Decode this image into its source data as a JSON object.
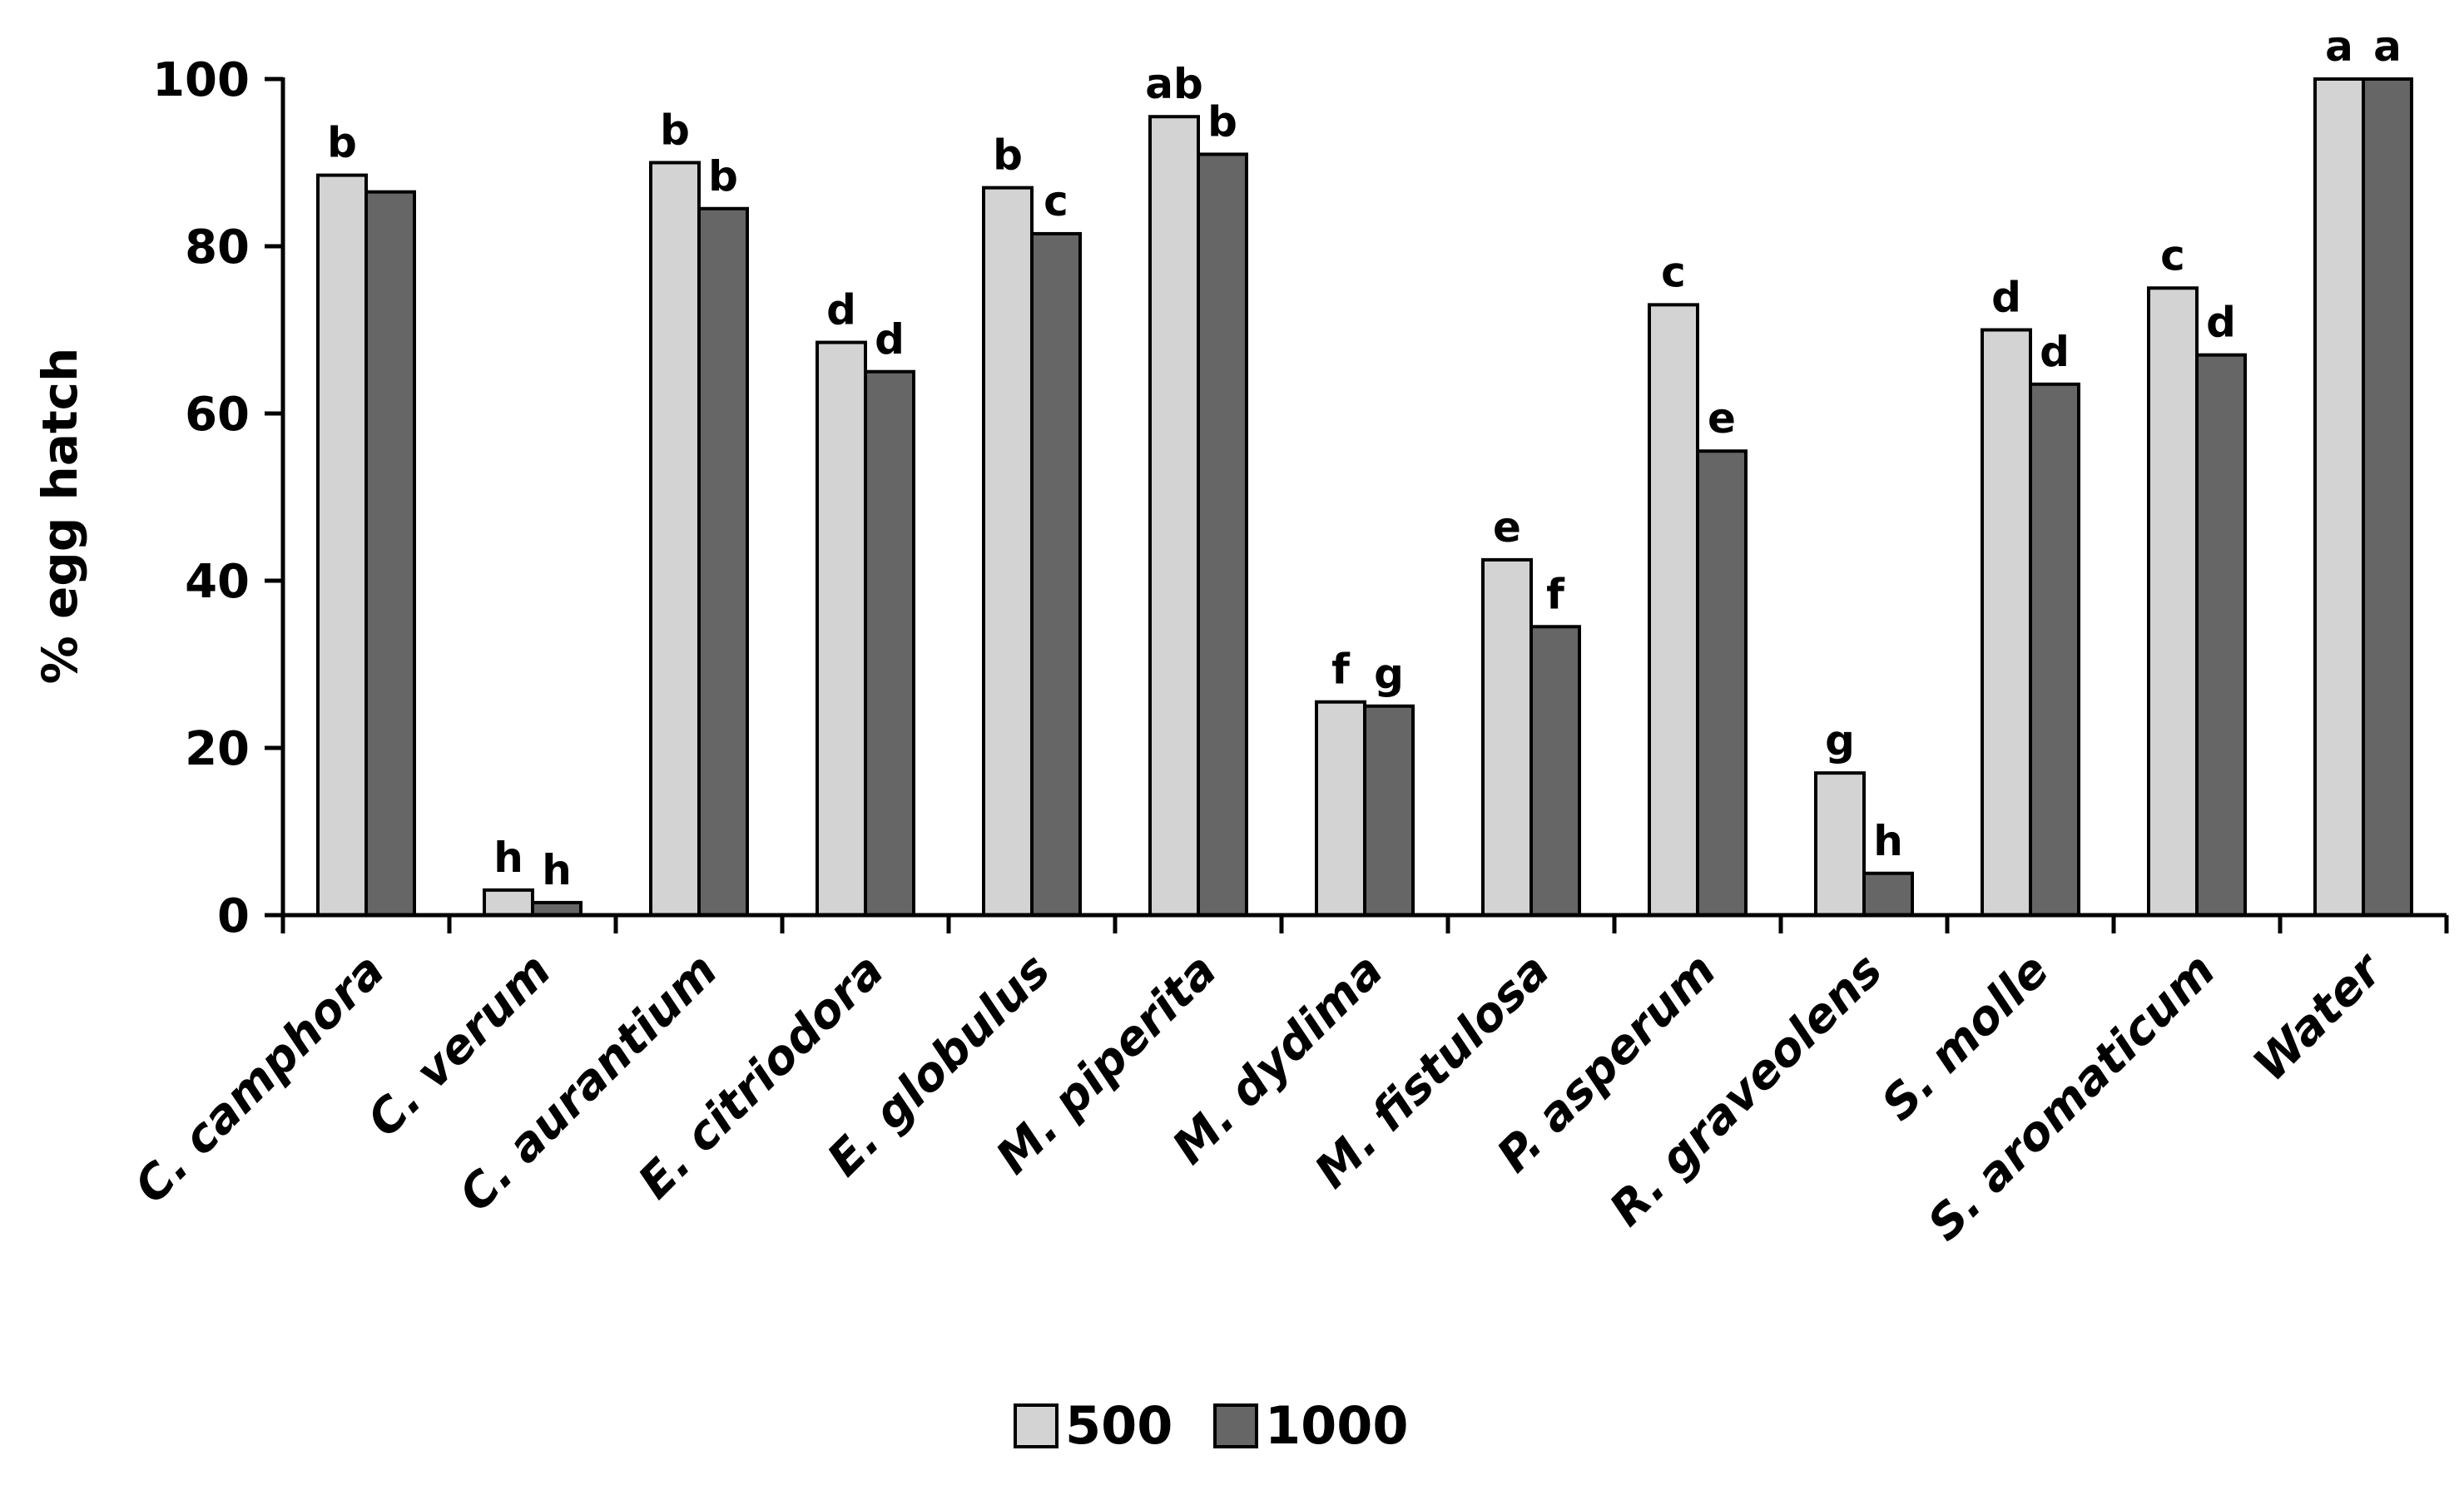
{
  "chart_data": {
    "type": "bar",
    "ylabel": "% egg hatch",
    "ylim": [
      0,
      100
    ],
    "yticks": [
      0,
      20,
      40,
      60,
      80,
      100
    ],
    "categories": [
      "C. camphora",
      "C. verum",
      "C. aurantium",
      "E. citriodora",
      "E. globulus",
      "M. piperita",
      "M. dydima",
      "M. fistulosa",
      "P. asperum",
      "R. graveolens",
      "S. molle",
      "S. aromaticum",
      "Water"
    ],
    "series": [
      {
        "name": "500",
        "color": "#d3d3d3",
        "values": [
          88.5,
          3,
          90,
          68.5,
          87,
          95.5,
          25.5,
          42.5,
          73,
          17,
          70,
          75,
          100
        ],
        "labels": [
          "b",
          "h",
          "b",
          "d",
          "b",
          "ab",
          "f",
          "e",
          "c",
          "g",
          "d",
          "c",
          "a"
        ]
      },
      {
        "name": "1000",
        "color": "#666666",
        "values": [
          86.5,
          1.5,
          84.5,
          65,
          81.5,
          91,
          25,
          34.5,
          55.5,
          5,
          63.5,
          67,
          100
        ],
        "labels": [
          "",
          "h",
          "b",
          "d",
          "c",
          "b",
          "g",
          "f",
          "e",
          "h",
          "d",
          "d",
          "a"
        ]
      }
    ],
    "legend": {
      "position": "bottom-center"
    }
  }
}
